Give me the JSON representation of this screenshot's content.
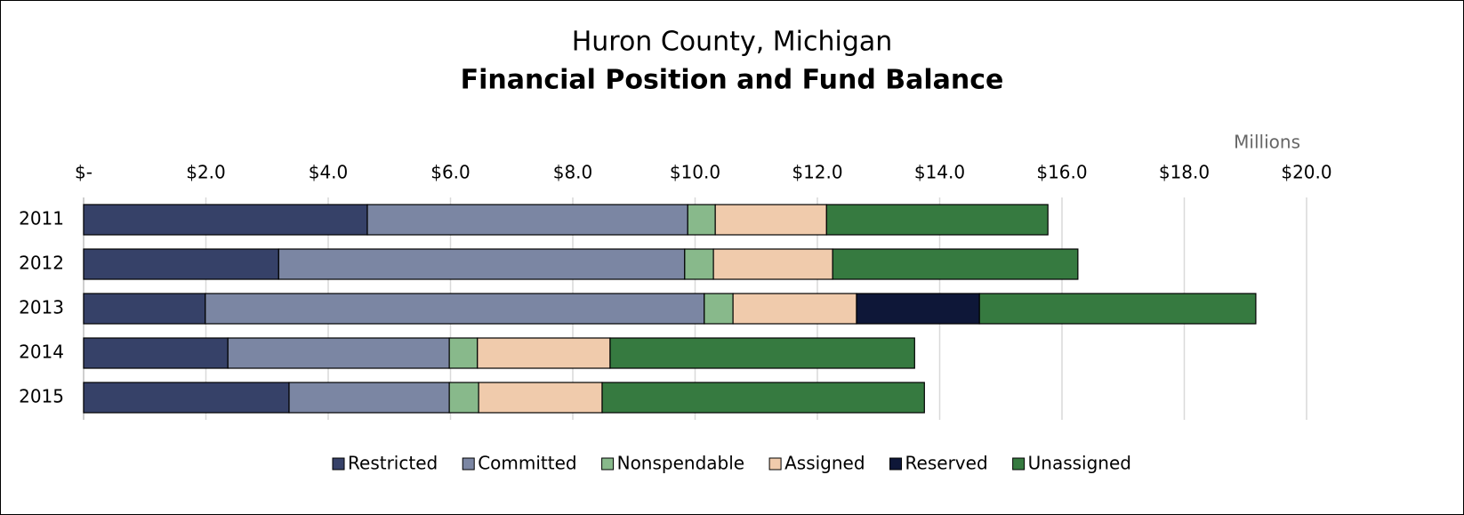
{
  "chart_data": {
    "type": "stacked-bar-horizontal",
    "title": "Huron County, Michigan",
    "subtitle": "Financial Position and Fund Balance",
    "x_axis_label": "Millions",
    "categories": [
      "2011",
      "2012",
      "2013",
      "2014",
      "2015"
    ],
    "series": [
      {
        "name": "Restricted",
        "color": "#364168",
        "values": [
          4.64,
          3.19,
          1.99,
          2.36,
          3.36
        ]
      },
      {
        "name": "Committed",
        "color": "#7b86a3",
        "values": [
          5.24,
          6.64,
          8.16,
          3.62,
          2.62
        ]
      },
      {
        "name": "Nonspendable",
        "color": "#88b98b",
        "values": [
          0.45,
          0.47,
          0.47,
          0.46,
          0.48
        ]
      },
      {
        "name": "Assigned",
        "color": "#f0cbac",
        "values": [
          1.82,
          1.95,
          2.02,
          2.17,
          2.02
        ]
      },
      {
        "name": "Reserved",
        "color": "#0e1738",
        "values": [
          0,
          0,
          2.01,
          0,
          0
        ]
      },
      {
        "name": "Unassigned",
        "color": "#367a40",
        "values": [
          3.62,
          4.01,
          4.52,
          4.98,
          5.27
        ]
      }
    ],
    "xlim": [
      0,
      20
    ],
    "xticks": [
      {
        "value": 0,
        "label": "$-"
      },
      {
        "value": 2,
        "label": "$2.0"
      },
      {
        "value": 4,
        "label": "$4.0"
      },
      {
        "value": 6,
        "label": "$6.0"
      },
      {
        "value": 8,
        "label": "$8.0"
      },
      {
        "value": 10,
        "label": "$10.0"
      },
      {
        "value": 12,
        "label": "$12.0"
      },
      {
        "value": 14,
        "label": "$14.0"
      },
      {
        "value": 16,
        "label": "$16.0"
      },
      {
        "value": 18,
        "label": "$18.0"
      },
      {
        "value": 20,
        "label": "$20.0"
      }
    ],
    "grid": true,
    "legend": "bottom"
  }
}
